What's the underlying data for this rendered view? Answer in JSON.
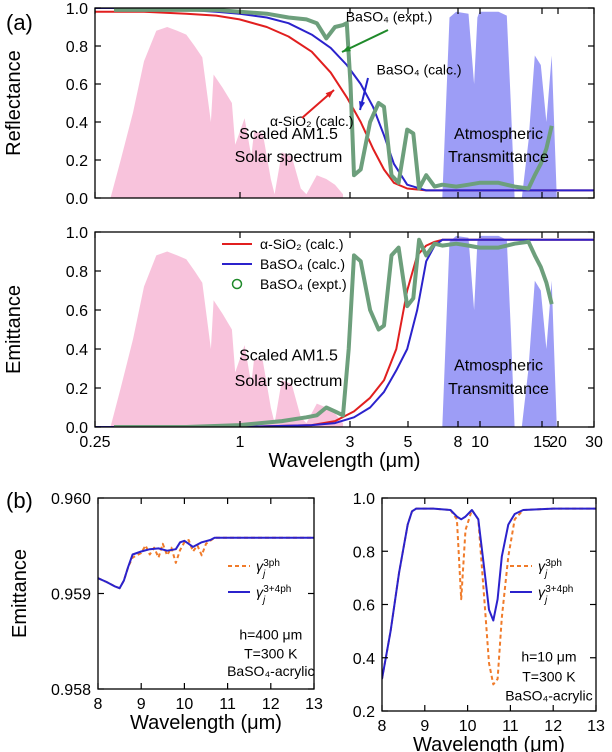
{
  "chart_data": [
    {
      "panel": "(a)",
      "type": "line",
      "xlabel": "",
      "ylabel": "Reflectance",
      "xscale": "log",
      "xlim": [
        0.25,
        30
      ],
      "ylim": [
        0,
        1.0
      ],
      "xticks": [
        "",
        "",
        "",
        "",
        "",
        "",
        "",
        "",
        ""
      ],
      "yticks": [
        "0.0",
        "0.2",
        "0.4",
        "0.6",
        "0.8",
        "1.0"
      ],
      "annotations": [
        {
          "text": "Scaled AM1.5",
          "x": 1.6,
          "y": 0.31
        },
        {
          "text": "Solar spectrum",
          "x": 1.6,
          "y": 0.19
        },
        {
          "text": "Atmospheric",
          "x": 12,
          "y": 0.31
        },
        {
          "text": "Transmittance",
          "x": 12,
          "y": 0.19
        },
        {
          "text": "BaSO₄ (expt.)",
          "x": 4.2,
          "y": 0.93,
          "color": "#1f8a2a"
        },
        {
          "text": "BaSO₄ (calc.)",
          "x": 5.6,
          "y": 0.65,
          "color": "#2222cc"
        },
        {
          "text": "α-SiO₂ (calc.)",
          "x": 2.0,
          "y": 0.38,
          "color": "#e11f1f"
        }
      ],
      "series": [
        {
          "name": "α-SiO₂ (calc.)",
          "color": "#e11f1f",
          "x": [
            0.25,
            0.4,
            0.6,
            0.8,
            1.0,
            1.3,
            1.6,
            2.0,
            2.4,
            2.8,
            3.2,
            3.6,
            4.0,
            4.4,
            5.0,
            6.0,
            8,
            10,
            15,
            20,
            30
          ],
          "y": [
            0.98,
            0.98,
            0.97,
            0.96,
            0.94,
            0.9,
            0.85,
            0.77,
            0.66,
            0.53,
            0.4,
            0.26,
            0.15,
            0.08,
            0.05,
            0.04,
            0.04,
            0.04,
            0.04,
            0.04,
            0.04
          ]
        },
        {
          "name": "BaSO₄ (calc.)",
          "color": "#2b22cc",
          "x": [
            0.25,
            0.4,
            0.6,
            0.8,
            1.0,
            1.3,
            1.6,
            2.0,
            2.4,
            2.8,
            3.2,
            3.6,
            4.0,
            4.4,
            5.0,
            6.0,
            8,
            10,
            15,
            20,
            30
          ],
          "y": [
            1.0,
            1.0,
            0.99,
            0.98,
            0.97,
            0.95,
            0.92,
            0.86,
            0.79,
            0.7,
            0.6,
            0.48,
            0.33,
            0.18,
            0.07,
            0.04,
            0.04,
            0.04,
            0.04,
            0.04,
            0.04
          ]
        },
        {
          "name": "BaSO₄ (expt.)",
          "color": "#6d9f7c",
          "x": [
            0.3,
            0.4,
            0.6,
            0.8,
            1.0,
            1.3,
            1.6,
            1.9,
            2.1,
            2.3,
            2.5,
            2.7,
            2.8,
            2.9,
            3.0,
            3.2,
            3.5,
            3.8,
            4.0,
            4.3,
            4.6,
            5.0,
            5.3,
            5.6,
            6.0,
            6.5,
            7,
            8,
            9,
            10,
            12,
            14,
            16,
            17,
            18,
            19,
            20
          ],
          "y": [
            0.99,
            0.99,
            0.99,
            0.99,
            0.98,
            0.97,
            0.95,
            0.94,
            0.92,
            0.84,
            0.9,
            0.91,
            0.92,
            0.6,
            0.12,
            0.15,
            0.4,
            0.5,
            0.48,
            0.12,
            0.08,
            0.36,
            0.34,
            0.05,
            0.12,
            0.06,
            0.07,
            0.06,
            0.07,
            0.08,
            0.08,
            0.06,
            0.05,
            0.12,
            0.18,
            0.26,
            0.38
          ]
        },
        {
          "name": "Scaled AM1.5 Solar spectrum",
          "color": "#f7b8d6",
          "x": [
            0.29,
            0.32,
            0.36,
            0.4,
            0.45,
            0.5,
            0.55,
            0.6,
            0.65,
            0.7,
            0.76,
            0.78,
            0.85,
            0.93,
            0.96,
            1.05,
            1.12,
            1.15,
            1.25,
            1.35,
            1.4,
            1.5,
            1.65,
            1.8,
            1.9,
            2.1,
            2.3,
            2.5,
            2.7
          ],
          "y": [
            0.0,
            0.2,
            0.45,
            0.72,
            0.88,
            0.9,
            0.88,
            0.86,
            0.8,
            0.74,
            0.4,
            0.65,
            0.58,
            0.5,
            0.28,
            0.42,
            0.22,
            0.35,
            0.34,
            0.1,
            0.02,
            0.24,
            0.22,
            0.05,
            0.02,
            0.12,
            0.1,
            0.07,
            0.02
          ]
        },
        {
          "name": "Atmospheric Transmittance",
          "color": "#8c8cf4",
          "x": [
            7.0,
            7.5,
            8.0,
            9.0,
            9.5,
            9.8,
            10,
            11,
            12,
            13,
            13.5,
            14,
            15,
            16,
            17,
            18,
            19,
            20,
            21
          ],
          "y": [
            0.0,
            0.95,
            0.98,
            0.97,
            0.6,
            0.95,
            0.98,
            0.98,
            0.98,
            0.96,
            0.5,
            0.0,
            0.0,
            0.3,
            0.75,
            0.7,
            0.4,
            0.75,
            0.0
          ]
        }
      ]
    },
    {
      "panel": "",
      "type": "line",
      "xlabel": "Wavelength (μm)",
      "ylabel": "Emittance",
      "xscale": "log",
      "xlim": [
        0.25,
        30
      ],
      "ylim": [
        0,
        1.0
      ],
      "xticks": [
        "0.25",
        "1",
        "3",
        "5",
        "8",
        "10",
        "15",
        "20",
        "30"
      ],
      "yticks": [
        "0.0",
        "0.2",
        "0.4",
        "0.6",
        "0.8",
        "1.0"
      ],
      "legend": "top-center",
      "annotations": [
        {
          "text": "Scaled AM1.5",
          "x": 1.6,
          "y": 0.34
        },
        {
          "text": "Solar spectrum",
          "x": 1.6,
          "y": 0.21
        },
        {
          "text": "Atmospheric",
          "x": 12,
          "y": 0.29
        },
        {
          "text": "Transmittance",
          "x": 12,
          "y": 0.17
        }
      ],
      "series": [
        {
          "name": "α-SiO₂ (calc.)",
          "color": "#e11f1f",
          "x": [
            0.25,
            1,
            2,
            2.5,
            3.0,
            3.5,
            4.0,
            4.5,
            5.0,
            5.5,
            6.0,
            6.5,
            7,
            8,
            10,
            15,
            20,
            30
          ],
          "y": [
            0.0,
            0.0,
            0.01,
            0.03,
            0.08,
            0.15,
            0.24,
            0.4,
            0.7,
            0.88,
            0.93,
            0.95,
            0.96,
            0.96,
            0.96,
            0.96,
            0.96,
            0.96
          ]
        },
        {
          "name": "BaSO₄ (calc.)",
          "color": "#2b22cc",
          "x": [
            0.25,
            1,
            2,
            2.5,
            3.0,
            3.5,
            4.0,
            4.5,
            5.0,
            5.5,
            6.0,
            6.5,
            7,
            8,
            10,
            15,
            20,
            30
          ],
          "y": [
            0.0,
            0.0,
            0.01,
            0.02,
            0.05,
            0.1,
            0.18,
            0.29,
            0.4,
            0.6,
            0.85,
            0.93,
            0.96,
            0.96,
            0.96,
            0.96,
            0.96,
            0.96
          ]
        },
        {
          "name": "BaSO₄ (expt.)",
          "color": "#6d9f7c",
          "x": [
            0.3,
            0.6,
            1.0,
            1.5,
            1.9,
            2.1,
            2.3,
            2.5,
            2.7,
            2.85,
            3.0,
            3.2,
            3.5,
            3.8,
            4.0,
            4.3,
            4.6,
            5.0,
            5.3,
            5.6,
            6.0,
            6.5,
            7,
            8,
            9,
            10,
            12,
            14,
            16,
            17,
            18,
            19,
            20
          ],
          "y": [
            0.0,
            0.0,
            0.01,
            0.03,
            0.05,
            0.06,
            0.1,
            0.08,
            0.06,
            0.4,
            0.88,
            0.85,
            0.6,
            0.5,
            0.52,
            0.88,
            0.92,
            0.62,
            0.66,
            0.96,
            0.88,
            0.94,
            0.93,
            0.94,
            0.93,
            0.92,
            0.92,
            0.94,
            0.95,
            0.88,
            0.82,
            0.74,
            0.63
          ]
        },
        {
          "name": "Scaled AM1.5 Solar spectrum",
          "color": "#f7b8d6",
          "x": [
            0.29,
            0.32,
            0.36,
            0.4,
            0.45,
            0.5,
            0.55,
            0.6,
            0.65,
            0.7,
            0.76,
            0.78,
            0.85,
            0.93,
            0.96,
            1.05,
            1.12,
            1.15,
            1.25,
            1.35,
            1.4,
            1.5,
            1.65,
            1.8,
            1.9,
            2.1,
            2.3,
            2.5,
            2.7
          ],
          "y": [
            0.0,
            0.2,
            0.45,
            0.72,
            0.88,
            0.9,
            0.88,
            0.86,
            0.8,
            0.74,
            0.4,
            0.65,
            0.58,
            0.5,
            0.28,
            0.42,
            0.22,
            0.35,
            0.34,
            0.1,
            0.02,
            0.24,
            0.22,
            0.05,
            0.02,
            0.12,
            0.1,
            0.07,
            0.02
          ]
        },
        {
          "name": "Atmospheric Transmittance",
          "color": "#8c8cf4",
          "x": [
            7.0,
            7.5,
            8.0,
            9.0,
            9.5,
            9.8,
            10,
            11,
            12,
            13,
            13.5,
            14,
            15,
            16,
            17,
            18,
            19,
            20,
            21
          ],
          "y": [
            0.0,
            0.95,
            0.98,
            0.97,
            0.6,
            0.95,
            0.98,
            0.98,
            0.98,
            0.96,
            0.5,
            0.0,
            0.0,
            0.3,
            0.75,
            0.7,
            0.4,
            0.75,
            0.0
          ]
        }
      ]
    },
    {
      "panel": "(b)",
      "type": "line",
      "xlabel": "Wavelength (μm)",
      "ylabel": "Emittance",
      "xlim": [
        8,
        13
      ],
      "ylim": [
        0.958,
        0.9605
      ],
      "xticks": [
        "8",
        "9",
        "10",
        "11",
        "12",
        "13"
      ],
      "yticks": [
        "0.958",
        "0.959",
        "0.960"
      ],
      "legend": "right",
      "annotations": [
        {
          "text": "h=400 μm",
          "x": 12.0,
          "y": 0.95865
        },
        {
          "text": "T=300 K",
          "x": 12.0,
          "y": 0.9584
        },
        {
          "text": "BaSO₄-acrylic",
          "x": 12.0,
          "y": 0.95817
        }
      ],
      "series": [
        {
          "name": "γj3ph",
          "color": "#f07b2a",
          "x": [
            8.0,
            8.2,
            8.4,
            8.5,
            8.6,
            8.7,
            8.8,
            9.0,
            9.1,
            9.2,
            9.3,
            9.4,
            9.5,
            9.6,
            9.7,
            9.8,
            9.9,
            10.0,
            10.1,
            10.2,
            10.3,
            10.4,
            10.5,
            10.7,
            11.0,
            11.5,
            12.0,
            12.5,
            13.0
          ],
          "y": [
            0.95945,
            0.9594,
            0.95934,
            0.95932,
            0.95942,
            0.9596,
            0.95972,
            0.95978,
            0.95988,
            0.95976,
            0.95985,
            0.95972,
            0.9599,
            0.95975,
            0.95985,
            0.95965,
            0.95982,
            0.95992,
            0.95995,
            0.9598,
            0.95988,
            0.95975,
            0.9599,
            0.95998,
            0.95998,
            0.95998,
            0.95998,
            0.95998,
            0.95998
          ]
        },
        {
          "name": "γj3+4ph",
          "color": "#2b22cc",
          "x": [
            8.0,
            8.2,
            8.4,
            8.5,
            8.6,
            8.7,
            8.8,
            9.0,
            9.2,
            9.4,
            9.6,
            9.8,
            9.9,
            10.0,
            10.1,
            10.2,
            10.4,
            10.6,
            10.7,
            11.0,
            11.5,
            12.0,
            12.5,
            13.0
          ],
          "y": [
            0.95945,
            0.9594,
            0.95934,
            0.95932,
            0.95942,
            0.9596,
            0.95976,
            0.9598,
            0.95983,
            0.95984,
            0.95981,
            0.95983,
            0.95992,
            0.95994,
            0.9599,
            0.95986,
            0.95992,
            0.95995,
            0.95998,
            0.95998,
            0.95998,
            0.95998,
            0.95998,
            0.95998
          ]
        }
      ]
    },
    {
      "panel": "",
      "type": "line",
      "xlabel": "Wavelength (μm)",
      "ylabel": "",
      "xlim": [
        8,
        13
      ],
      "ylim": [
        0.2,
        1.0
      ],
      "xticks": [
        "8",
        "9",
        "10",
        "11",
        "12",
        "13"
      ],
      "yticks": [
        "0.2",
        "0.4",
        "0.6",
        "0.8",
        "1.0"
      ],
      "legend": "right",
      "annotations": [
        {
          "text": "h=10 μm",
          "x": 11.9,
          "y": 0.385
        },
        {
          "text": "T=300 K",
          "x": 11.9,
          "y": 0.31
        },
        {
          "text": "BaSO₄-acrylic",
          "x": 11.9,
          "y": 0.24
        }
      ],
      "series": [
        {
          "name": "γj3ph",
          "color": "#f07b2a",
          "x": [
            8.0,
            8.2,
            8.4,
            8.6,
            8.7,
            8.8,
            9.2,
            9.6,
            9.75,
            9.85,
            9.95,
            10.1,
            10.25,
            10.4,
            10.5,
            10.6,
            10.7,
            10.8,
            10.95,
            11.1,
            11.3,
            12,
            13
          ],
          "y": [
            0.32,
            0.5,
            0.72,
            0.9,
            0.95,
            0.96,
            0.96,
            0.955,
            0.92,
            0.62,
            0.88,
            0.955,
            0.92,
            0.6,
            0.38,
            0.3,
            0.32,
            0.55,
            0.78,
            0.92,
            0.955,
            0.96,
            0.96
          ]
        },
        {
          "name": "γj3+4ph",
          "color": "#2b22cc",
          "x": [
            8.0,
            8.2,
            8.4,
            8.6,
            8.7,
            8.8,
            9.2,
            9.6,
            9.75,
            9.85,
            9.95,
            10.1,
            10.25,
            10.4,
            10.5,
            10.6,
            10.7,
            10.8,
            10.95,
            11.1,
            11.3,
            12,
            13
          ],
          "y": [
            0.32,
            0.5,
            0.72,
            0.9,
            0.95,
            0.96,
            0.96,
            0.955,
            0.93,
            0.92,
            0.93,
            0.955,
            0.92,
            0.72,
            0.58,
            0.54,
            0.62,
            0.78,
            0.9,
            0.94,
            0.955,
            0.96,
            0.96
          ]
        }
      ]
    }
  ]
}
